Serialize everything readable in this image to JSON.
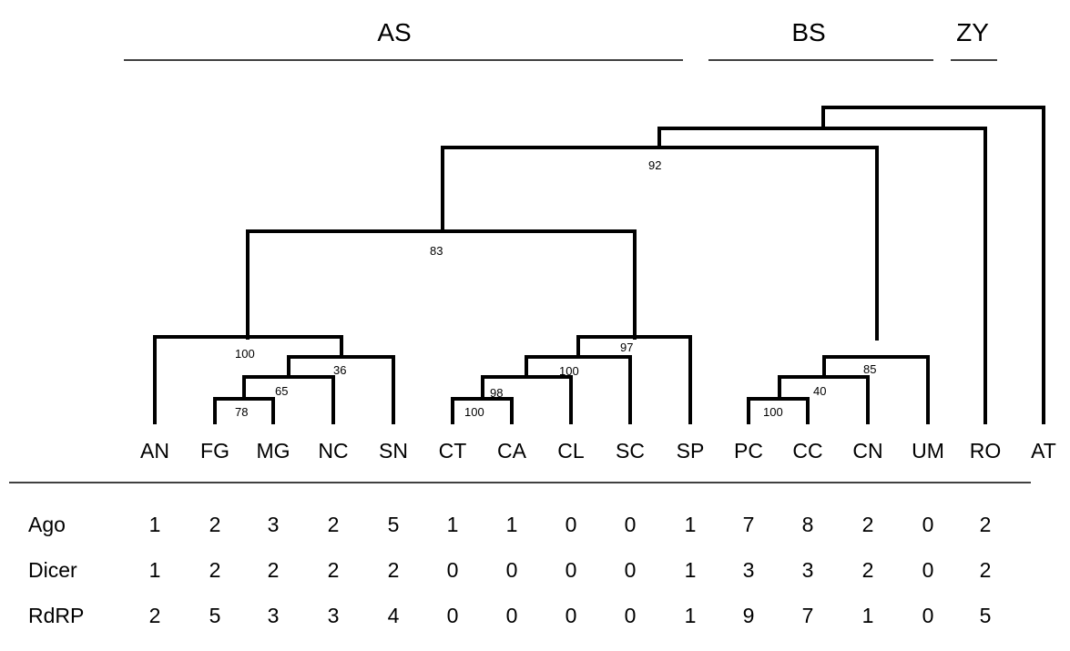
{
  "groups": [
    {
      "label": "AS"
    },
    {
      "label": "BS"
    },
    {
      "label": "ZY"
    }
  ],
  "taxa": [
    "AN",
    "FG",
    "MG",
    "NC",
    "SN",
    "CT",
    "CA",
    "CL",
    "SC",
    "SP",
    "PC",
    "CC",
    "CN",
    "UM",
    "RO",
    "AT"
  ],
  "support_values": [
    "92",
    "83",
    "100",
    "36",
    "65",
    "78",
    "97",
    "100",
    "98",
    "100",
    "85",
    "40",
    "100"
  ],
  "table": {
    "rows": [
      {
        "label": "Ago",
        "values": [
          "1",
          "2",
          "3",
          "2",
          "5",
          "1",
          "1",
          "0",
          "0",
          "1",
          "7",
          "8",
          "2",
          "0",
          "2"
        ]
      },
      {
        "label": "Dicer",
        "values": [
          "1",
          "2",
          "2",
          "2",
          "2",
          "0",
          "0",
          "0",
          "0",
          "1",
          "3",
          "3",
          "2",
          "0",
          "2"
        ]
      },
      {
        "label": "RdRP",
        "values": [
          "2",
          "5",
          "3",
          "3",
          "4",
          "0",
          "0",
          "0",
          "0",
          "1",
          "9",
          "7",
          "1",
          "0",
          "5"
        ]
      }
    ]
  }
}
